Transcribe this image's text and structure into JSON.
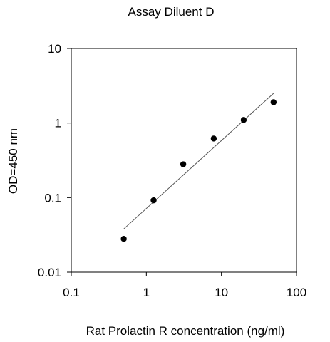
{
  "chart_data": {
    "type": "scatter",
    "title": "Assay Diluent D",
    "xlabel": "Rat Prolactin R concentration (ng/ml)",
    "ylabel": "OD=450 nm",
    "x_scale": "log",
    "y_scale": "log",
    "xlim": [
      0.1,
      100
    ],
    "ylim": [
      0.01,
      10
    ],
    "x_ticks": [
      0.1,
      1,
      10,
      100
    ],
    "y_ticks": [
      0.01,
      0.1,
      1,
      10
    ],
    "x_tick_labels": [
      "0.1",
      "1",
      "10",
      "100"
    ],
    "y_tick_labels": [
      "0.01",
      "0.1",
      "1",
      "10"
    ],
    "grid": false,
    "series": [
      {
        "x": [
          0.5,
          1.25,
          3.1,
          7.9,
          19.8,
          49.5
        ],
        "y": [
          0.028,
          0.092,
          0.28,
          0.62,
          1.1,
          1.9
        ]
      }
    ],
    "fit_line": {
      "x": [
        0.5,
        49.5
      ],
      "y": [
        0.038,
        2.5
      ]
    }
  }
}
